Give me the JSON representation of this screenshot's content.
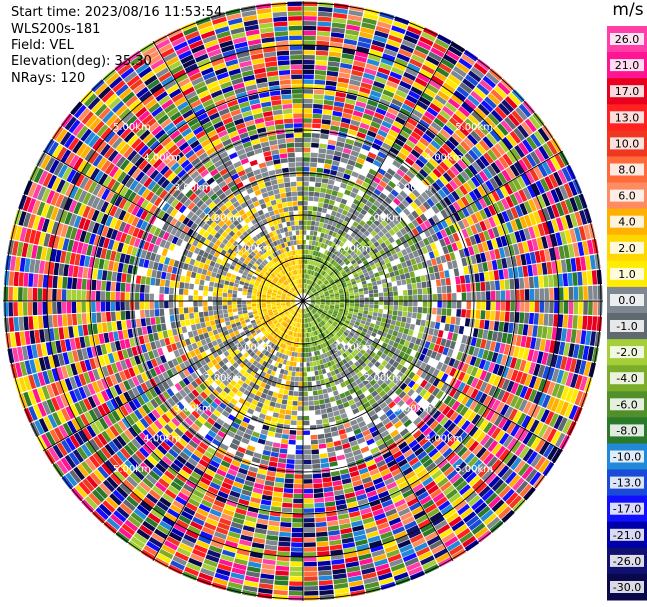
{
  "header": {
    "start_time": "Start time: 2023/08/16 11:53:54",
    "instrument": "WLS200s-181",
    "field": "Field: VEL",
    "elevation": "Elevation(deg): 35.30",
    "nrays": "NRays: 120"
  },
  "ring_labels": {
    "r1": "1.00km",
    "r2": "2.00km",
    "r3": "3.00km",
    "r4": "4.00km",
    "r5": "5.00km"
  },
  "colorbar": {
    "unit": "m/s",
    "ticks": [
      "26.0",
      "21.0",
      "17.0",
      "13.0",
      "10.0",
      "8.0",
      "6.0",
      "4.0",
      "2.0",
      "1.0",
      "0.0",
      "-1.0",
      "-2.0",
      "-4.0",
      "-6.0",
      "-8.0",
      "-10.0",
      "-13.0",
      "-17.0",
      "-21.0",
      "-26.0",
      "-30.0"
    ],
    "colors": [
      "#ff3ea8",
      "#ff1493",
      "#e8001e",
      "#ff2020",
      "#f03820",
      "#ff6a3a",
      "#ff8c60",
      "#ffb000",
      "#ffd700",
      "#ffec00",
      "#7f8890",
      "#606870",
      "#a4cf38",
      "#7cad2a",
      "#508f2a",
      "#2a7a2a",
      "#2288d8",
      "#1a4ad8",
      "#1010ff",
      "#0000a8",
      "#101070",
      "#08084a"
    ]
  }
}
